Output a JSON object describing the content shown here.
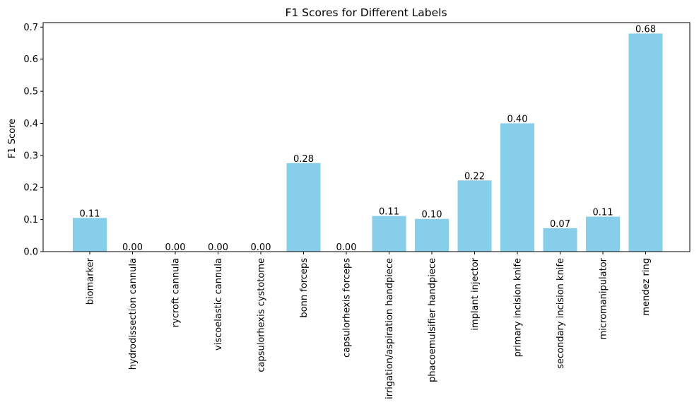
{
  "chart_data": {
    "type": "bar",
    "title": "F1 Scores for Different Labels",
    "xlabel": "",
    "ylabel": "F1 Score",
    "categories": [
      "biomarker",
      "hydrodissection cannula",
      "rycroft cannula",
      "viscoelastic cannula",
      "capsulorhexis cystotome",
      "bonn forceps",
      "capsulorhexis forceps",
      "irrigation/aspiration handpiece",
      "phacoemulsifier handpiece",
      "implant injector",
      "primary incision knife",
      "secondary incision knife",
      "micromanipulator",
      "mendez ring"
    ],
    "values": [
      0.105,
      0.0,
      0.0,
      0.0,
      0.0,
      0.276,
      0.0,
      0.111,
      0.102,
      0.222,
      0.4,
      0.073,
      0.109,
      0.68
    ],
    "data_labels": [
      "0.11",
      "0.00",
      "0.00",
      "0.00",
      "0.00",
      "0.28",
      "0.00",
      "0.11",
      "0.10",
      "0.22",
      "0.40",
      "0.07",
      "0.11",
      "0.68"
    ],
    "ylim": [
      0,
      0.714
    ],
    "yticks": [
      0.0,
      0.1,
      0.2,
      0.3,
      0.4,
      0.5,
      0.6,
      0.7
    ],
    "ytick_labels": [
      "0.0",
      "0.1",
      "0.2",
      "0.3",
      "0.4",
      "0.5",
      "0.6",
      "0.7"
    ],
    "bar_color": "#87CEEB",
    "grid": false,
    "legend": "none"
  }
}
